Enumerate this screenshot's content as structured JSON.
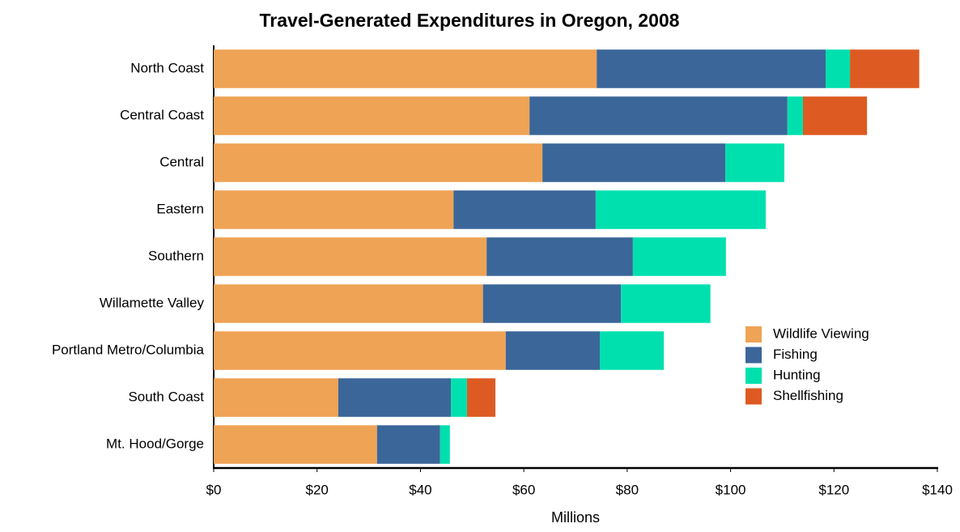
{
  "chart_data": {
    "type": "stacked-barh",
    "title": "Travel-Generated Expenditures in Oregon, 2008",
    "xlabel": "Millions",
    "categories": [
      "North Coast",
      "Central Coast",
      "Central",
      "Eastern",
      "Southern",
      "Willamette Valley",
      "Portland Metro/Columbia",
      "South Coast",
      "Mt. Hood/Gorge"
    ],
    "series": [
      {
        "name": "Wildlife Viewing",
        "color": "#EFA355",
        "values": [
          74.1,
          61.1,
          63.6,
          46.4,
          52.8,
          52.1,
          56.5,
          24.1,
          31.6
        ]
      },
      {
        "name": "Fishing",
        "color": "#3B6699",
        "values": [
          44.3,
          49.9,
          35.4,
          27.5,
          28.3,
          26.7,
          18.2,
          21.8,
          12.2
        ]
      },
      {
        "name": "Hunting",
        "color": "#00E0AE",
        "values": [
          4.7,
          3.0,
          11.4,
          32.9,
          18.0,
          17.3,
          12.4,
          3.1,
          1.9
        ]
      },
      {
        "name": "Shellfishing",
        "color": "#DD5B22",
        "values": [
          13.4,
          12.4,
          0,
          0,
          0,
          0,
          0,
          5.5,
          0
        ]
      }
    ],
    "xlim": [
      0,
      140
    ],
    "xticks": [
      {
        "value": 0,
        "label": "$0"
      },
      {
        "value": 20,
        "label": "$20"
      },
      {
        "value": 40,
        "label": "$40"
      },
      {
        "value": 60,
        "label": "$60"
      },
      {
        "value": 80,
        "label": "$80"
      },
      {
        "value": 100,
        "label": "$100"
      },
      {
        "value": 120,
        "label": "$120"
      },
      {
        "value": 140,
        "label": "$140"
      }
    ],
    "legend": "right"
  }
}
